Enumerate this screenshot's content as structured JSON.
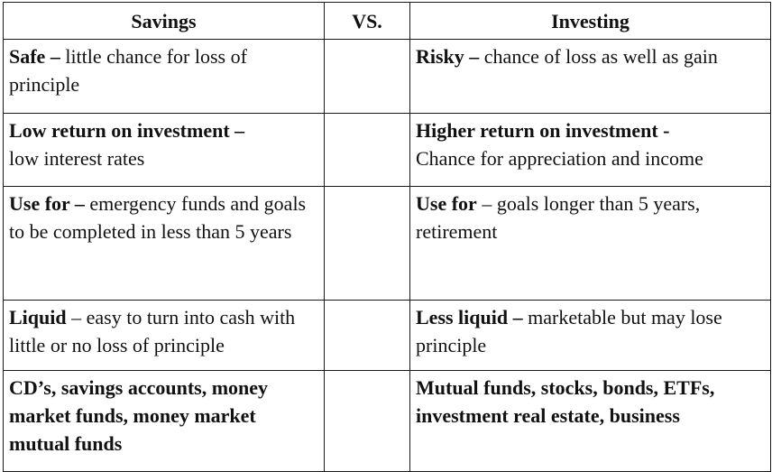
{
  "headers": {
    "left": "Savings",
    "middle": "VS.",
    "right": "Investing"
  },
  "rows": [
    {
      "savings": {
        "bold": "Safe –",
        "text": " little chance for loss of principle"
      },
      "investing": {
        "bold": "Risky –",
        "text": " chance of loss as well as gain"
      }
    },
    {
      "savings": {
        "bold": "Low return on investment –",
        "text": " low interest rates"
      },
      "investing": {
        "bold": "Higher return on investment -",
        "text": " Chance for appreciation and income"
      }
    },
    {
      "savings": {
        "bold": "Use for –",
        "text": " emergency funds and goals to be completed in less than 5 years"
      },
      "investing": {
        "bold": "Use for",
        "text": " – goals longer than 5 years, retirement"
      }
    },
    {
      "savings": {
        "bold": "Liquid",
        "text": " – easy to turn into cash with little or no loss of principle"
      },
      "investing": {
        "bold": "Less liquid –",
        "text": " marketable but may lose principle"
      }
    },
    {
      "savings": {
        "bold": "CD’s, savings accounts, money market funds, money market mutual funds",
        "text": ""
      },
      "investing": {
        "bold": "Mutual funds, stocks, bonds, ETFs, investment real estate, business",
        "text": ""
      }
    }
  ]
}
